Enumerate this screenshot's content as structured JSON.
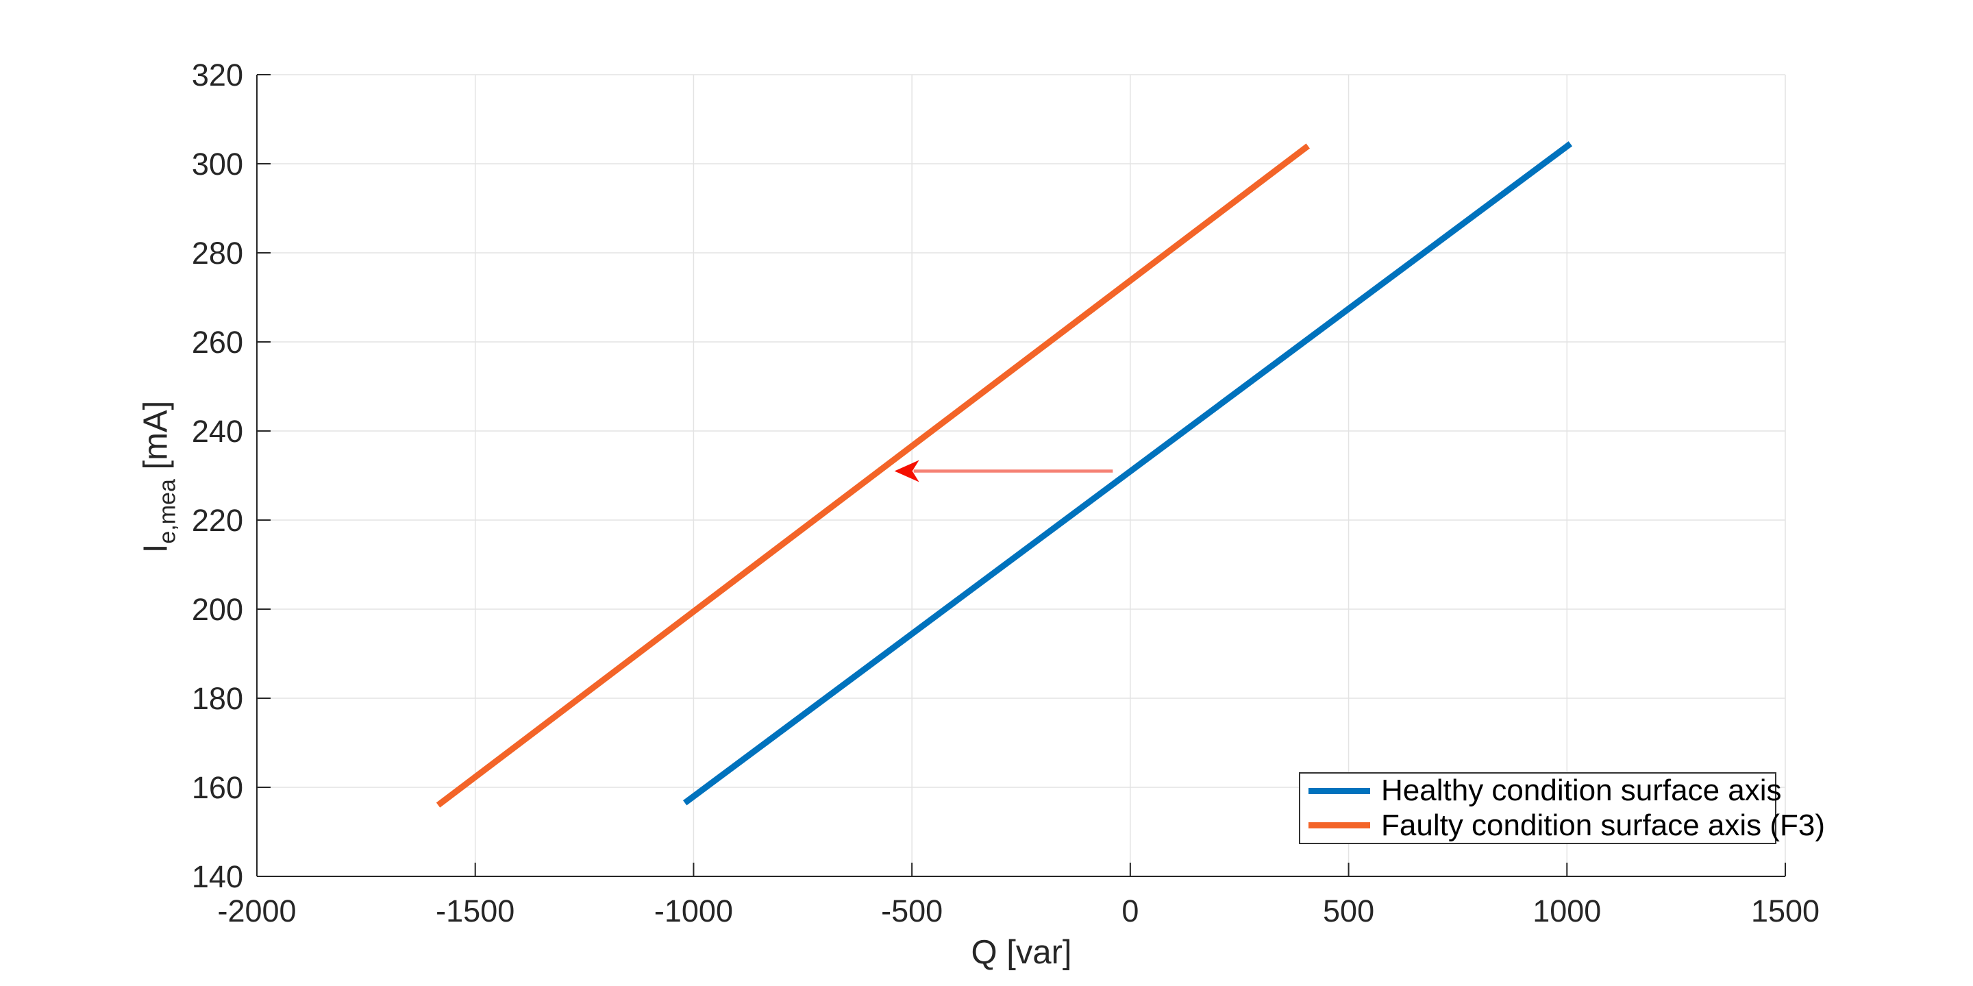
{
  "figure": {
    "background": "#ffffff",
    "xlabel": "Q [var]",
    "ylabel_main": "I",
    "ylabel_sub": "e,mea",
    "ylabel_unit": " [mA]"
  },
  "chart_data": {
    "type": "line",
    "title": "",
    "xlabel": "Q [var]",
    "ylabel": "I_{e,mea} [mA]",
    "xlim": [
      -2000,
      1500
    ],
    "ylim": [
      140,
      320
    ],
    "x_ticks": [
      -2000,
      -1500,
      -1000,
      -500,
      0,
      500,
      1000,
      1500
    ],
    "y_ticks": [
      140,
      160,
      180,
      200,
      220,
      240,
      260,
      280,
      300,
      320
    ],
    "grid": true,
    "legend_position": "bottom-right",
    "series": [
      {
        "name": "Healthy condition surface axis",
        "color": "#0072BD",
        "x": [
          -1020,
          1008
        ],
        "y": [
          156.5,
          304.5
        ]
      },
      {
        "name": "Faulty condition surface axis (F3)",
        "color": "#F36428",
        "x": [
          -1585,
          407
        ],
        "y": [
          156,
          304
        ]
      }
    ],
    "annotation_arrow": {
      "y": 231,
      "x_from": -40,
      "x_to": -540,
      "line_color": "#F58275",
      "head_color": "#F50F00"
    }
  },
  "style_colors": {
    "grid": "#E3E3E3",
    "axis": "#262626",
    "tick_text": "#262626"
  }
}
